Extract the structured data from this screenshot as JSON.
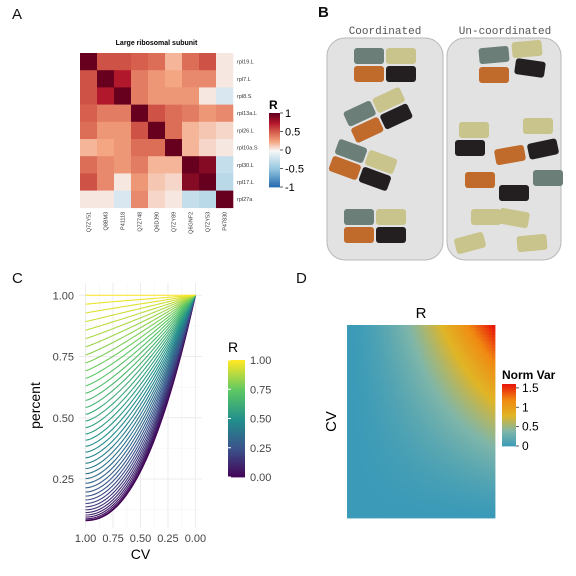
{
  "panels": {
    "a": "A",
    "b": "B",
    "c": "C",
    "d": "D"
  },
  "panel_b": {
    "coordinated_label": "Coordinated",
    "uncoordinated_label": "Un-coordinated",
    "colors": {
      "slate": "#6b7f78",
      "khaki": "#c9c48b",
      "orange": "#c06a2b",
      "black": "#231f20",
      "panel_bg": "#e2e2e2",
      "panel_border": "#b8b8b8"
    }
  },
  "chart_data": [
    {
      "type": "heatmap",
      "title": "Large ribosomal subunit",
      "row_labels": [
        "rpl19.L",
        "rpl7.L",
        "rpl8.S",
        "rpl13a.L",
        "rpl26.L",
        "rpl10a.S",
        "rpl30.L",
        "rpl17.L",
        "rpl27a"
      ],
      "col_labels": [
        "Q7ZY51",
        "Q8BM3",
        "P41118",
        "Q7Z748",
        "Q6DJ90",
        "Q7ZY89",
        "Q6GNF2",
        "Q7ZY53",
        "P47830"
      ],
      "values": [
        [
          1.0,
          0.55,
          0.55,
          0.5,
          0.45,
          0.2,
          0.45,
          0.55,
          0.05
        ],
        [
          0.55,
          1.0,
          0.75,
          0.4,
          0.3,
          0.25,
          0.35,
          0.35,
          0.05
        ],
        [
          0.55,
          0.75,
          1.0,
          0.4,
          0.3,
          0.3,
          0.3,
          0.05,
          -0.15
        ],
        [
          0.5,
          0.4,
          0.4,
          1.0,
          0.55,
          0.45,
          0.4,
          0.3,
          0.35
        ],
        [
          0.45,
          0.3,
          0.3,
          0.55,
          1.0,
          0.45,
          0.2,
          0.15,
          0.1
        ],
        [
          0.2,
          0.25,
          0.3,
          0.45,
          0.45,
          1.0,
          0.2,
          0.1,
          0.05
        ],
        [
          0.45,
          0.35,
          0.3,
          0.4,
          0.2,
          0.2,
          1.0,
          0.9,
          -0.25
        ],
        [
          0.55,
          0.35,
          0.05,
          0.3,
          0.15,
          0.1,
          0.9,
          1.0,
          -0.3
        ],
        [
          0.05,
          0.05,
          -0.15,
          0.35,
          0.1,
          0.05,
          -0.25,
          -0.3,
          1.0
        ]
      ],
      "legend_title": "R",
      "legend_ticks": [
        "1",
        "0.5",
        "0",
        "-0.5",
        "-1"
      ],
      "legend_values": [
        1,
        0.5,
        0,
        -0.5,
        -1
      ],
      "zlim": [
        -1,
        1
      ],
      "colors": {
        "low": "#2166ac",
        "mid": "#f7f7f7",
        "high": "#67001f"
      }
    },
    {
      "type": "line",
      "xlabel": "CV",
      "ylabel": "percent",
      "x_ticks": [
        "1.00",
        "0.75",
        "0.50",
        "0.25",
        "0.00"
      ],
      "x_tick_values": [
        1,
        0.75,
        0.5,
        0.25,
        0
      ],
      "y_ticks": [
        "1.00",
        "0.75",
        "0.50",
        "0.25"
      ],
      "y_tick_values": [
        1,
        0.75,
        0.5,
        0.25
      ],
      "xlim": [
        1.06,
        -0.06
      ],
      "ylim": [
        0.05,
        1.05
      ],
      "series_family": {
        "r_from": 0,
        "r_to": 1,
        "count": 41,
        "endpoint_y_at_cv1": [
          0.08,
          1.0
        ]
      },
      "legend_title": "R",
      "legend_ticks": [
        "1.00",
        "0.75",
        "0.50",
        "0.25",
        "0.00"
      ],
      "legend_values": [
        1,
        0.75,
        0.5,
        0.25,
        0
      ],
      "grid": true,
      "colors": {
        "viridis": [
          "#440154",
          "#3b528b",
          "#21908c",
          "#5dc863",
          "#fde725"
        ],
        "panel_bg": "#ffffff",
        "grid": "#ececec"
      }
    },
    {
      "type": "heatmap",
      "xlabel": "R",
      "ylabel": "CV",
      "legend_title": "Norm Var",
      "legend_ticks": [
        "1.5",
        "1",
        "0.5",
        "0"
      ],
      "legend_values": [
        1.5,
        1,
        0.5,
        0
      ],
      "zlim": [
        0,
        1.6
      ],
      "colors": {
        "low": "#3a9ab8",
        "mid1": "#7fb6a9",
        "mid2": "#e0b526",
        "high": "#e8180a"
      }
    }
  ]
}
